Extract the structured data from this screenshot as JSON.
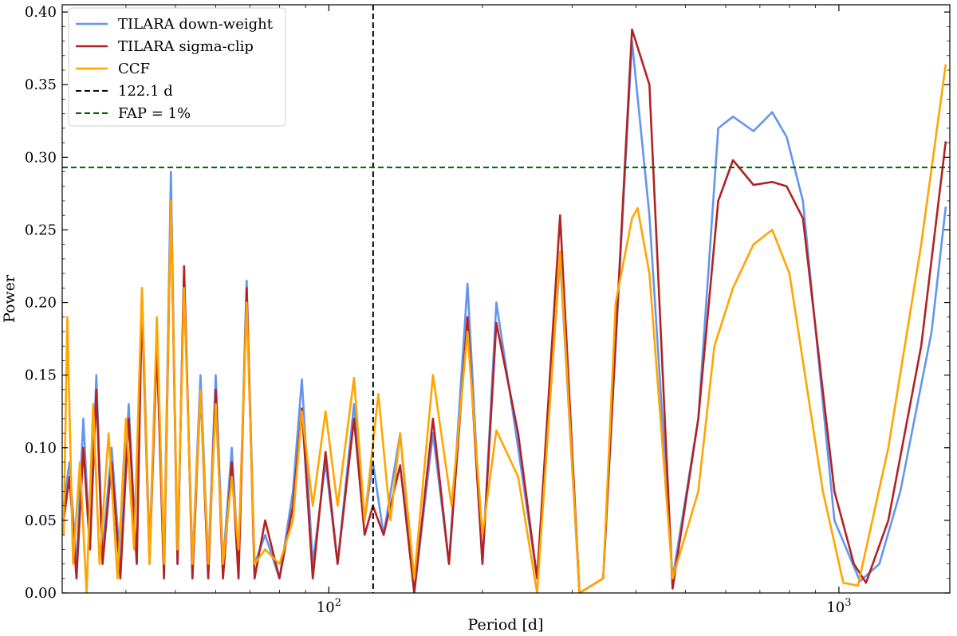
{
  "chart_data": {
    "type": "line",
    "xscale": "log",
    "xlabel": "Period [d]",
    "ylabel": "Power",
    "xlim": [
      30,
      1650
    ],
    "ylim": [
      0,
      0.405
    ],
    "yticks": [
      0.0,
      0.05,
      0.1,
      0.15,
      0.2,
      0.25,
      0.3,
      0.35,
      0.4
    ],
    "ytick_labels": [
      "0.00",
      "0.05",
      "0.10",
      "0.15",
      "0.20",
      "0.25",
      "0.30",
      "0.35",
      "0.40"
    ],
    "xticks": [
      {
        "value": 100,
        "base": "10",
        "exp": "2"
      },
      {
        "value": 1000,
        "base": "10",
        "exp": "3"
      }
    ],
    "legend_position": "top-left",
    "series": [
      {
        "name": "TILARA down-weight",
        "color": "#6495ED",
        "points": [
          [
            30.2,
            0.06
          ],
          [
            31,
            0.09
          ],
          [
            32,
            0.02
          ],
          [
            33,
            0.12
          ],
          [
            34,
            0.03
          ],
          [
            35,
            0.15
          ],
          [
            36,
            0.03
          ],
          [
            37.5,
            0.1
          ],
          [
            39,
            0.02
          ],
          [
            40.5,
            0.13
          ],
          [
            42,
            0.02
          ],
          [
            43,
            0.21
          ],
          [
            44.5,
            0.03
          ],
          [
            46,
            0.18
          ],
          [
            47.5,
            0.02
          ],
          [
            49,
            0.29
          ],
          [
            50.5,
            0.02
          ],
          [
            52,
            0.22
          ],
          [
            54,
            0.02
          ],
          [
            56,
            0.15
          ],
          [
            58,
            0.02
          ],
          [
            60,
            0.15
          ],
          [
            62,
            0.02
          ],
          [
            64.5,
            0.1
          ],
          [
            66.5,
            0.02
          ],
          [
            69,
            0.215
          ],
          [
            71.5,
            0.02
          ],
          [
            75,
            0.04
          ],
          [
            80,
            0.01
          ],
          [
            85,
            0.07
          ],
          [
            88.5,
            0.147
          ],
          [
            93,
            0.02
          ],
          [
            98.5,
            0.09
          ],
          [
            104,
            0.02
          ],
          [
            112,
            0.13
          ],
          [
            117.5,
            0.05
          ],
          [
            122,
            0.09
          ],
          [
            128,
            0.04
          ],
          [
            138,
            0.11
          ],
          [
            147,
            0.0
          ],
          [
            160,
            0.11
          ],
          [
            172,
            0.02
          ],
          [
            187,
            0.213
          ],
          [
            200,
            0.02
          ],
          [
            213,
            0.2
          ],
          [
            235,
            0.1
          ],
          [
            256,
            0.01
          ],
          [
            284,
            0.23
          ],
          [
            310,
            0.0
          ],
          [
            345,
            0.01
          ],
          [
            393,
            0.38
          ],
          [
            425,
            0.26
          ],
          [
            472,
            0.01
          ],
          [
            530,
            0.12
          ],
          [
            580,
            0.32
          ],
          [
            620,
            0.328
          ],
          [
            680,
            0.318
          ],
          [
            740,
            0.331
          ],
          [
            790,
            0.314
          ],
          [
            850,
            0.27
          ],
          [
            980,
            0.05
          ],
          [
            1100,
            0.008
          ],
          [
            1200,
            0.02
          ],
          [
            1320,
            0.07
          ],
          [
            1520,
            0.18
          ],
          [
            1620,
            0.266
          ]
        ]
      },
      {
        "name": "TILARA sigma-clip",
        "color": "#B22222",
        "points": [
          [
            30.2,
            0.05
          ],
          [
            31,
            0.08
          ],
          [
            32,
            0.01
          ],
          [
            33,
            0.1
          ],
          [
            34,
            0.03
          ],
          [
            35,
            0.14
          ],
          [
            36,
            0.02
          ],
          [
            37.5,
            0.09
          ],
          [
            39,
            0.01
          ],
          [
            40.5,
            0.12
          ],
          [
            42,
            0.02
          ],
          [
            43,
            0.2
          ],
          [
            44.5,
            0.02
          ],
          [
            46,
            0.17
          ],
          [
            47.5,
            0.01
          ],
          [
            49,
            0.27
          ],
          [
            50.5,
            0.02
          ],
          [
            52,
            0.225
          ],
          [
            54,
            0.01
          ],
          [
            56,
            0.14
          ],
          [
            58,
            0.01
          ],
          [
            60,
            0.14
          ],
          [
            62,
            0.01
          ],
          [
            64.5,
            0.09
          ],
          [
            66.5,
            0.01
          ],
          [
            69,
            0.21
          ],
          [
            71.5,
            0.01
          ],
          [
            75,
            0.05
          ],
          [
            80,
            0.01
          ],
          [
            85,
            0.06
          ],
          [
            88.5,
            0.127
          ],
          [
            93,
            0.01
          ],
          [
            98.5,
            0.097
          ],
          [
            104,
            0.02
          ],
          [
            112,
            0.12
          ],
          [
            117.5,
            0.04
          ],
          [
            122,
            0.06
          ],
          [
            128,
            0.04
          ],
          [
            138,
            0.088
          ],
          [
            147,
            0.0
          ],
          [
            160,
            0.12
          ],
          [
            172,
            0.02
          ],
          [
            187,
            0.19
          ],
          [
            200,
            0.02
          ],
          [
            213,
            0.186
          ],
          [
            235,
            0.11
          ],
          [
            256,
            0.01
          ],
          [
            284,
            0.26
          ],
          [
            310,
            0.0
          ],
          [
            345,
            0.01
          ],
          [
            393,
            0.388
          ],
          [
            425,
            0.35
          ],
          [
            472,
            0.003
          ],
          [
            530,
            0.12
          ],
          [
            580,
            0.27
          ],
          [
            620,
            0.298
          ],
          [
            680,
            0.281
          ],
          [
            740,
            0.283
          ],
          [
            790,
            0.28
          ],
          [
            850,
            0.258
          ],
          [
            980,
            0.07
          ],
          [
            1070,
            0.02
          ],
          [
            1130,
            0.007
          ],
          [
            1250,
            0.05
          ],
          [
            1450,
            0.17
          ],
          [
            1620,
            0.311
          ]
        ]
      },
      {
        "name": "CCF",
        "color": "#FFA500",
        "points": [
          [
            30.2,
            0.04
          ],
          [
            30.7,
            0.19
          ],
          [
            31.5,
            0.02
          ],
          [
            32.5,
            0.09
          ],
          [
            33.5,
            0.0
          ],
          [
            34.5,
            0.13
          ],
          [
            35.5,
            0.02
          ],
          [
            37,
            0.11
          ],
          [
            38.5,
            0.01
          ],
          [
            40,
            0.12
          ],
          [
            41.5,
            0.03
          ],
          [
            43,
            0.21
          ],
          [
            44.5,
            0.02
          ],
          [
            46,
            0.19
          ],
          [
            47.5,
            0.02
          ],
          [
            49,
            0.27
          ],
          [
            50.5,
            0.03
          ],
          [
            52,
            0.21
          ],
          [
            54,
            0.02
          ],
          [
            56,
            0.14
          ],
          [
            58,
            0.02
          ],
          [
            60,
            0.13
          ],
          [
            62,
            0.02
          ],
          [
            64.5,
            0.08
          ],
          [
            66.5,
            0.03
          ],
          [
            69,
            0.2
          ],
          [
            71.5,
            0.02
          ],
          [
            75,
            0.03
          ],
          [
            80,
            0.02
          ],
          [
            85,
            0.05
          ],
          [
            88.5,
            0.125
          ],
          [
            93,
            0.06
          ],
          [
            98.5,
            0.125
          ],
          [
            104,
            0.06
          ],
          [
            112,
            0.148
          ],
          [
            117.5,
            0.05
          ],
          [
            125,
            0.137
          ],
          [
            132,
            0.05
          ],
          [
            138,
            0.11
          ],
          [
            147,
            0.01
          ],
          [
            160,
            0.15
          ],
          [
            174,
            0.06
          ],
          [
            187,
            0.18
          ],
          [
            200,
            0.04
          ],
          [
            213,
            0.112
          ],
          [
            235,
            0.08
          ],
          [
            256,
            0.0
          ],
          [
            284,
            0.235
          ],
          [
            310,
            0.0
          ],
          [
            345,
            0.01
          ],
          [
            365,
            0.2
          ],
          [
            393,
            0.258
          ],
          [
            403,
            0.265
          ],
          [
            425,
            0.22
          ],
          [
            472,
            0.01
          ],
          [
            530,
            0.07
          ],
          [
            570,
            0.17
          ],
          [
            620,
            0.21
          ],
          [
            680,
            0.24
          ],
          [
            740,
            0.25
          ],
          [
            800,
            0.22
          ],
          [
            930,
            0.07
          ],
          [
            1020,
            0.007
          ],
          [
            1090,
            0.005
          ],
          [
            1250,
            0.1
          ],
          [
            1450,
            0.24
          ],
          [
            1620,
            0.364
          ]
        ]
      },
      {
        "name": "122.1 d",
        "color": "#000000",
        "kind": "vline",
        "x": 122.1
      },
      {
        "name": "FAP = 1%",
        "color": "#006400",
        "kind": "hline",
        "y": 0.293
      }
    ]
  }
}
